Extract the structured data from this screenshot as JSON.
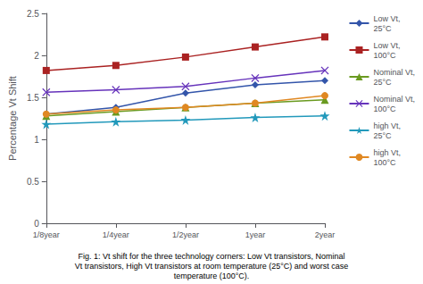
{
  "chart_data": {
    "type": "line",
    "categories": [
      "1/8year",
      "1/4year",
      "1/2year",
      "1year",
      "2year"
    ],
    "series": [
      {
        "name": "Low Vt,\n25°C",
        "color": "#3355aa",
        "marker": "diamond",
        "values": [
          1.3,
          1.38,
          1.55,
          1.65,
          1.7
        ]
      },
      {
        "name": "Low Vt,\n100°C",
        "color": "#aa2222",
        "marker": "square",
        "values": [
          1.82,
          1.88,
          1.98,
          2.1,
          2.22
        ]
      },
      {
        "name": "Nominal Vt,\n25°C",
        "color": "#6a9a20",
        "marker": "triangle",
        "values": [
          1.28,
          1.33,
          1.38,
          1.43,
          1.47
        ]
      },
      {
        "name": "Nominal Vt,\n100°C",
        "color": "#6633bb",
        "marker": "x",
        "values": [
          1.56,
          1.59,
          1.63,
          1.73,
          1.82
        ]
      },
      {
        "name": "high Vt,\n25°C",
        "color": "#2299bb",
        "marker": "star",
        "values": [
          1.18,
          1.21,
          1.23,
          1.26,
          1.28
        ]
      },
      {
        "name": "high Vt,\n100°C",
        "color": "#e08822",
        "marker": "circle",
        "values": [
          1.3,
          1.35,
          1.38,
          1.43,
          1.52
        ]
      }
    ],
    "ylabel": "Percentage Vt Shift",
    "ylim": [
      0,
      2.5
    ],
    "yticks": [
      0,
      0.5,
      1,
      1.5,
      2,
      2.5
    ],
    "grid": false,
    "legend": "right",
    "annotations": [
      "Fig. 1: Vt shift for the three technology corners: Low Vt transistors, Nominal\nVt transistors, High Vt transistors at room temperature (25°C) and worst case\ntemperature (100°C)."
    ]
  }
}
